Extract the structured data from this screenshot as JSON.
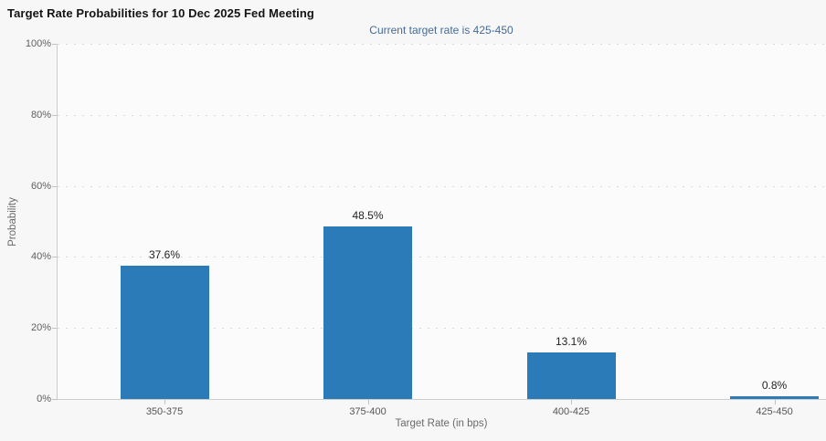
{
  "header": {
    "title": "Target Rate Probabilities for 10 Dec 2025 Fed Meeting",
    "subtitle": "Current target rate is 425-450"
  },
  "chart_data": {
    "type": "bar",
    "title": "Target Rate Probabilities for 10 Dec 2025 Fed Meeting",
    "subtitle": "Current target rate is 425-450",
    "categories": [
      "350-375",
      "375-400",
      "400-425",
      "425-450"
    ],
    "values": [
      37.6,
      48.5,
      13.1,
      0.8
    ],
    "value_labels": [
      "37.6%",
      "48.5%",
      "13.1%",
      "0.8%"
    ],
    "xlabel": "Target Rate (in bps)",
    "ylabel": "Probability",
    "ylim": [
      0,
      100
    ],
    "yticks": [
      0,
      20,
      40,
      60,
      80,
      100
    ],
    "ytick_labels": [
      "0%",
      "20%",
      "40%",
      "60%",
      "80%",
      "100%"
    ],
    "grid": "horizontal-dotted",
    "legend": "none"
  },
  "colors": {
    "page_background": "#f7f7f7",
    "plot_background": "#fbfbfb",
    "bar": "#2b7bb9",
    "subtitle_text": "#466b95",
    "title_text": "#141414",
    "axis_text": "#606060",
    "value_label_text": "#1f1f1f",
    "axis_line": "#cdcdcd",
    "gridline": "#d9d9d9"
  }
}
